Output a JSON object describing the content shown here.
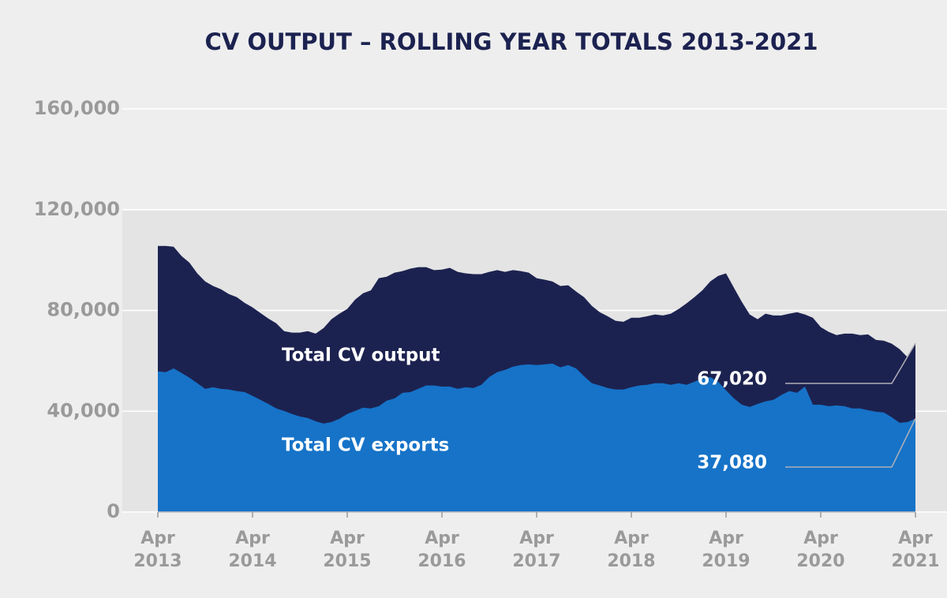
{
  "chart_data": {
    "type": "area",
    "title": "CV OUTPUT – ROLLING YEAR TOTALS 2013-2021",
    "categories": [
      "Apr 2013",
      null,
      null,
      null,
      null,
      null,
      null,
      null,
      null,
      null,
      null,
      null,
      "Apr 2014",
      null,
      null,
      null,
      null,
      null,
      null,
      null,
      null,
      null,
      null,
      null,
      "Apr 2015",
      null,
      null,
      null,
      null,
      null,
      null,
      null,
      null,
      null,
      null,
      null,
      "Apr 2016",
      null,
      null,
      null,
      null,
      null,
      null,
      null,
      null,
      null,
      null,
      null,
      "Apr 2017",
      null,
      null,
      null,
      null,
      null,
      null,
      null,
      null,
      null,
      null,
      null,
      "Apr 2018",
      null,
      null,
      null,
      null,
      null,
      null,
      null,
      null,
      null,
      null,
      null,
      "Apr 2019",
      null,
      null,
      null,
      null,
      null,
      null,
      null,
      null,
      null,
      null,
      null,
      "Apr 2020",
      null,
      null,
      null,
      null,
      null,
      null,
      null,
      null,
      null,
      null,
      null,
      "Apr 2021"
    ],
    "series": [
      {
        "name": "Total CV output",
        "color": "#1c2250",
        "values": [
          105600,
          105600,
          105300,
          101600,
          99000,
          94700,
          91500,
          89700,
          88400,
          86500,
          85300,
          83000,
          81200,
          79000,
          76800,
          74900,
          71800,
          71200,
          71200,
          71800,
          70800,
          73000,
          76500,
          78700,
          80600,
          84300,
          86800,
          88000,
          92800,
          93400,
          95000,
          95600,
          96600,
          97200,
          97200,
          96000,
          96200,
          96900,
          95300,
          94700,
          94400,
          94400,
          95300,
          96000,
          95300,
          96000,
          95600,
          95000,
          92800,
          92200,
          91500,
          89700,
          90000,
          87500,
          85300,
          81800,
          79300,
          77700,
          75900,
          75500,
          77100,
          77100,
          77700,
          78400,
          78000,
          78700,
          80600,
          82800,
          85300,
          88000,
          91500,
          93700,
          94700,
          89000,
          83400,
          78400,
          76500,
          78700,
          78000,
          78000,
          78700,
          79300,
          78400,
          77100,
          73400,
          71500,
          70200,
          70800,
          70800,
          70200,
          70500,
          68300,
          68000,
          66800,
          64600,
          61400,
          67020
        ],
        "value_labels": [
          null,
          null,
          null,
          null,
          null,
          null,
          null,
          null,
          null,
          null,
          null,
          null,
          null,
          null,
          null,
          null,
          null,
          null,
          null,
          null,
          null,
          null,
          null,
          null,
          null,
          null,
          null,
          null,
          null,
          null,
          null,
          null,
          null,
          null,
          null,
          null,
          null,
          null,
          null,
          null,
          null,
          null,
          null,
          null,
          null,
          null,
          null,
          null,
          null,
          null,
          null,
          null,
          null,
          null,
          null,
          null,
          null,
          null,
          null,
          null,
          null,
          null,
          null,
          null,
          null,
          null,
          null,
          null,
          null,
          null,
          null,
          null,
          null,
          null,
          null,
          null,
          null,
          null,
          null,
          null,
          null,
          null,
          null,
          null,
          null,
          null,
          null,
          null,
          null,
          null,
          null,
          null,
          null,
          null,
          null,
          null,
          "67,020"
        ]
      },
      {
        "name": "Total CV exports",
        "color": "#1673c8",
        "values": [
          55800,
          55500,
          57000,
          55200,
          53300,
          51100,
          48900,
          49500,
          48900,
          48600,
          48000,
          47600,
          46100,
          44500,
          42900,
          41100,
          40100,
          38900,
          37900,
          37300,
          36000,
          35100,
          35700,
          37000,
          38900,
          40100,
          41400,
          41100,
          42000,
          44200,
          45100,
          47300,
          47600,
          48900,
          50200,
          50200,
          49800,
          49800,
          48900,
          49500,
          49200,
          50500,
          53600,
          55500,
          56400,
          57700,
          58300,
          58600,
          58300,
          58600,
          58900,
          57400,
          58300,
          57000,
          53900,
          51100,
          50200,
          49200,
          48600,
          48600,
          49500,
          50200,
          50500,
          51100,
          51100,
          50500,
          51100,
          50500,
          51700,
          53000,
          53600,
          51700,
          48300,
          45100,
          42600,
          41700,
          42900,
          43900,
          44500,
          46400,
          48000,
          47300,
          49800,
          42600,
          42600,
          42000,
          42300,
          42000,
          41100,
          41100,
          40400,
          39800,
          39500,
          37600,
          35400,
          35700,
          37080
        ],
        "value_labels": [
          null,
          null,
          null,
          null,
          null,
          null,
          null,
          null,
          null,
          null,
          null,
          null,
          null,
          null,
          null,
          null,
          null,
          null,
          null,
          null,
          null,
          null,
          null,
          null,
          null,
          null,
          null,
          null,
          null,
          null,
          null,
          null,
          null,
          null,
          null,
          null,
          null,
          null,
          null,
          null,
          null,
          null,
          null,
          null,
          null,
          null,
          null,
          null,
          null,
          null,
          null,
          null,
          null,
          null,
          null,
          null,
          null,
          null,
          null,
          null,
          null,
          null,
          null,
          null,
          null,
          null,
          null,
          null,
          null,
          null,
          null,
          null,
          null,
          null,
          null,
          null,
          null,
          null,
          null,
          null,
          null,
          null,
          null,
          null,
          null,
          null,
          null,
          null,
          null,
          null,
          null,
          null,
          null,
          null,
          null,
          null,
          "37,080"
        ]
      }
    ],
    "ylim": [
      0,
      160000
    ],
    "yticks": [
      0,
      {
        "value": 40000,
        "label": "40,000"
      },
      {
        "value": 80000,
        "label": "80,000"
      },
      {
        "value": 120000,
        "label": "120,000"
      },
      {
        "value": 160000,
        "label": "160,000"
      }
    ],
    "grid": true
  }
}
